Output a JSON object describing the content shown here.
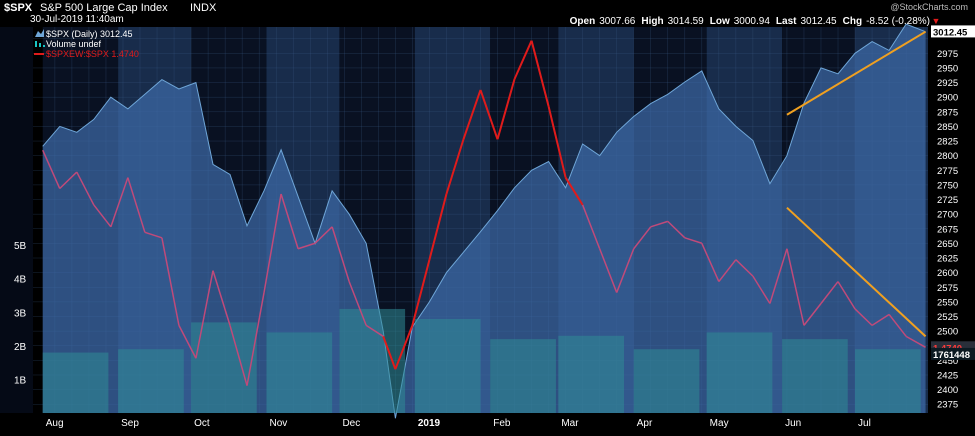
{
  "header": {
    "symbol": "$SPX",
    "name": "S&P 500 Large Cap Index",
    "exchange": "INDX",
    "timestamp": "30-Jul-2019 11:40am",
    "watermark": "@StockCharts.com",
    "stats": [
      {
        "label": "Open",
        "value": "3007.66"
      },
      {
        "label": "High",
        "value": "3014.59"
      },
      {
        "label": "Low",
        "value": "3000.94"
      },
      {
        "label": "Last",
        "value": "3012.45"
      },
      {
        "label": "Chg",
        "value": "-8.52 (-0.28%)"
      }
    ],
    "chg_arrow": "▼"
  },
  "legend": [
    {
      "text": "$SPX (Daily) 3012.45",
      "color": "#6fa6d8",
      "swatch": "mountain"
    },
    {
      "text": "Volume undef",
      "color": "#19c5c5",
      "swatch": "bars"
    },
    {
      "text": "$SPXEW:$SPX 1.4740",
      "color": "#e01b1b",
      "swatch": "line"
    }
  ],
  "price_badges": [
    {
      "text": "3012.45",
      "background": "#ffffff",
      "color": "#000000"
    },
    {
      "text": "1.4740",
      "background": "#2a2f3a",
      "color": "#ff3b3b"
    },
    {
      "text": "1761448",
      "background": "#0c1a22",
      "color": "#ffffff"
    }
  ],
  "colors": {
    "background": "#000000",
    "panel_dark": "#0a1428",
    "panel_light": "#1c3458",
    "price_fill": "#3d6aa6",
    "price_line": "#6fa6d8",
    "volume": "#2f8d96",
    "ratio_bright": "#e01b1b",
    "ratio_dim": "#c04a7a",
    "trendline": "#f0a020",
    "grid": "#3b5c88"
  },
  "chart_data": {
    "type": "area",
    "x_labels": [
      "Aug",
      "Sep",
      "Oct",
      "Nov",
      "Dec",
      "2019",
      "Feb",
      "Mar",
      "Apr",
      "May",
      "Jun",
      "Jul"
    ],
    "y_axis_right": {
      "ticks": [
        2375,
        2400,
        2425,
        2450,
        2475,
        2500,
        2525,
        2550,
        2575,
        2600,
        2625,
        2650,
        2675,
        2700,
        2725,
        2750,
        2775,
        2800,
        2825,
        2850,
        2875,
        2900,
        2925,
        2950,
        2975,
        3000
      ],
      "ylim": [
        2360,
        3020
      ]
    },
    "y_axis_volume": {
      "ticks": [
        "1B",
        "2B",
        "3B",
        "4B",
        "5B"
      ],
      "tick_values": [
        1,
        2,
        3,
        4,
        5
      ],
      "ylim": [
        0,
        11.5
      ]
    },
    "ratio_axis_ylim": [
      1.462,
      1.5325
    ],
    "series": [
      {
        "name": "$SPX (Daily) 3012.45",
        "type": "area",
        "x": [
          "2018-08-01",
          "2018-08-08",
          "2018-08-15",
          "2018-08-22",
          "2018-08-29",
          "2018-09-05",
          "2018-09-12",
          "2018-09-19",
          "2018-09-26",
          "2018-10-03",
          "2018-10-10",
          "2018-10-17",
          "2018-10-24",
          "2018-10-31",
          "2018-11-07",
          "2018-11-14",
          "2018-11-21",
          "2018-11-28",
          "2018-12-05",
          "2018-12-12",
          "2018-12-19",
          "2018-12-24",
          "2018-12-31",
          "2019-01-07",
          "2019-01-14",
          "2019-01-21",
          "2019-01-28",
          "2019-02-04",
          "2019-02-11",
          "2019-02-18",
          "2019-02-25",
          "2019-03-04",
          "2019-03-11",
          "2019-03-18",
          "2019-03-25",
          "2019-04-01",
          "2019-04-08",
          "2019-04-15",
          "2019-04-22",
          "2019-04-29",
          "2019-05-06",
          "2019-05-13",
          "2019-05-20",
          "2019-05-27",
          "2019-06-03",
          "2019-06-10",
          "2019-06-17",
          "2019-06-24",
          "2019-07-01",
          "2019-07-08",
          "2019-07-15",
          "2019-07-22",
          "2019-07-30"
        ],
        "values": [
          2816,
          2850,
          2840,
          2862,
          2900,
          2880,
          2905,
          2930,
          2914,
          2925,
          2785,
          2768,
          2680,
          2740,
          2810,
          2730,
          2650,
          2740,
          2700,
          2650,
          2500,
          2351,
          2507,
          2550,
          2600,
          2635,
          2670,
          2706,
          2745,
          2775,
          2790,
          2745,
          2820,
          2800,
          2840,
          2867,
          2889,
          2905,
          2926,
          2945,
          2880,
          2850,
          2826,
          2752,
          2800,
          2890,
          2950,
          2940,
          2975,
          2995,
          2980,
          3025,
          3012
        ]
      },
      {
        "name": "Volume undef",
        "type": "bar",
        "unit": "B",
        "x": [
          "2018-08",
          "2018-09",
          "2018-10",
          "2018-11",
          "2018-12",
          "2019-01",
          "2019-02",
          "2019-03",
          "2019-04",
          "2019-05",
          "2019-06",
          "2019-07"
        ],
        "values": [
          1.8,
          1.9,
          2.7,
          2.4,
          3.1,
          2.8,
          2.2,
          2.3,
          1.9,
          2.4,
          2.2,
          1.9
        ]
      },
      {
        "name": "$SPXEW:$SPX 1.4740",
        "type": "line",
        "x": [
          "2018-08-01",
          "2018-08-08",
          "2018-08-15",
          "2018-08-22",
          "2018-08-29",
          "2018-09-05",
          "2018-09-12",
          "2018-09-19",
          "2018-09-26",
          "2018-10-03",
          "2018-10-10",
          "2018-10-17",
          "2018-10-24",
          "2018-10-31",
          "2018-11-07",
          "2018-11-14",
          "2018-11-21",
          "2018-11-28",
          "2018-12-05",
          "2018-12-12",
          "2018-12-19",
          "2018-12-24",
          "2018-12-31",
          "2019-01-07",
          "2019-01-14",
          "2019-01-21",
          "2019-01-28",
          "2019-02-04",
          "2019-02-11",
          "2019-02-18",
          "2019-02-25",
          "2019-03-04",
          "2019-03-11",
          "2019-03-18",
          "2019-03-25",
          "2019-04-01",
          "2019-04-08",
          "2019-04-15",
          "2019-04-22",
          "2019-04-29",
          "2019-05-06",
          "2019-05-13",
          "2019-05-20",
          "2019-05-27",
          "2019-06-03",
          "2019-06-10",
          "2019-06-17",
          "2019-06-24",
          "2019-07-01",
          "2019-07-08",
          "2019-07-15",
          "2019-07-22",
          "2019-07-30"
        ],
        "values": [
          1.51,
          1.503,
          1.506,
          1.5,
          1.496,
          1.505,
          1.495,
          1.494,
          1.478,
          1.472,
          1.488,
          1.478,
          1.467,
          1.484,
          1.502,
          1.492,
          1.493,
          1.496,
          1.486,
          1.478,
          1.476,
          1.47,
          1.478,
          1.49,
          1.502,
          1.512,
          1.521,
          1.512,
          1.523,
          1.53,
          1.518,
          1.505,
          1.5,
          1.492,
          1.484,
          1.492,
          1.496,
          1.497,
          1.494,
          1.493,
          1.486,
          1.49,
          1.487,
          1.482,
          1.492,
          1.478,
          1.482,
          1.486,
          1.481,
          1.478,
          1.48,
          1.476,
          1.474
        ]
      }
    ],
    "trendlines": [
      {
        "x": [
          "2019-06-03",
          "2019-07-30"
        ],
        "y_axis": "price",
        "y": [
          2870,
          3012
        ]
      },
      {
        "x": [
          "2019-06-03",
          "2019-07-30"
        ],
        "y_axis": "ratio",
        "y": [
          1.4995,
          1.476
        ]
      }
    ]
  }
}
